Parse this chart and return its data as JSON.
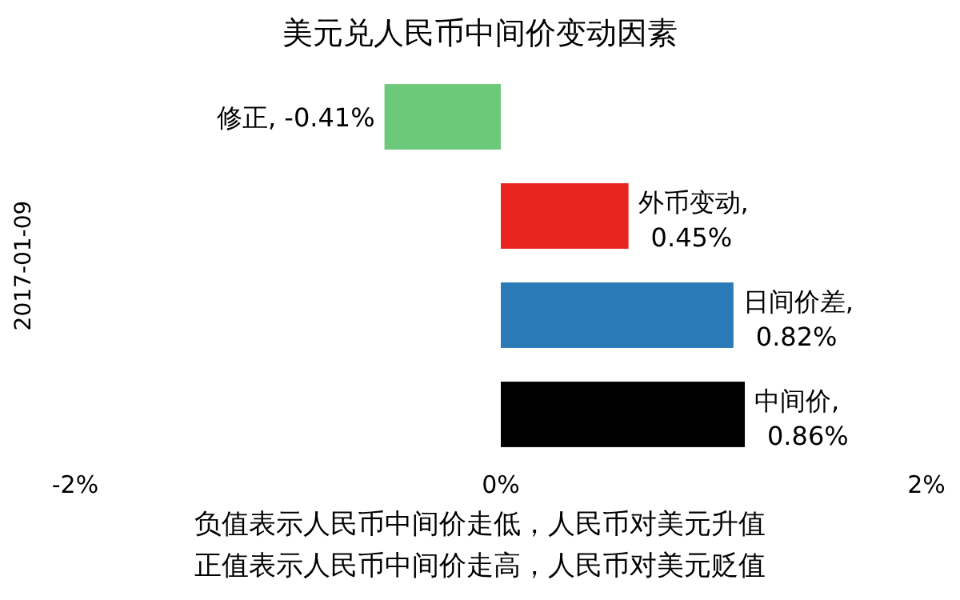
{
  "chart_data": {
    "type": "bar",
    "orientation": "horizontal",
    "title": "美元兑人民币中间价变动因素",
    "ylabel": "2017-01-09",
    "categories": [
      "修正",
      "外币变动",
      "日间价差",
      "中间价"
    ],
    "values": [
      -0.41,
      0.45,
      0.82,
      0.86
    ],
    "colors": [
      "#6cc97a",
      "#e8251f",
      "#2a7ab8",
      "#000000"
    ],
    "value_labels": [
      ", -0.41%",
      ", 0.45%",
      ", 0.82%",
      ", 0.86%"
    ],
    "xlim": [
      -1.5,
      1.5
    ],
    "xticks": [
      {
        "value": -1.5,
        "label": "-2%"
      },
      {
        "value": 0,
        "label": "0%"
      },
      {
        "value": 1.5,
        "label": "2%"
      }
    ],
    "grid": false,
    "annotations": [
      "负值表示人民币中间价走低，人民币对美元升值",
      "正值表示人民币中间价走高，人民币对美元贬值"
    ]
  }
}
